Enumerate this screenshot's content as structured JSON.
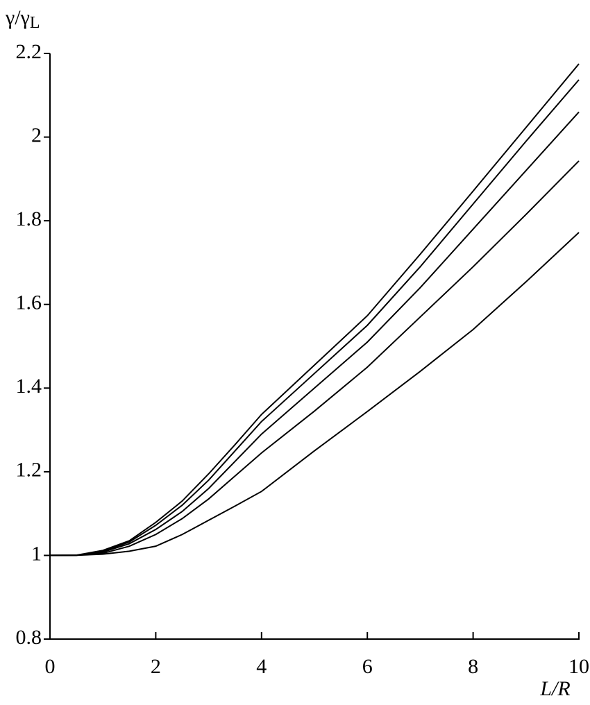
{
  "chart_data": {
    "type": "line",
    "ylabel": "γ/γ",
    "ylabel_sub": "L",
    "xlabel": "L/R",
    "x": [
      0,
      0.5,
      1,
      1.5,
      2,
      2.5,
      3,
      3.5,
      4,
      5,
      6,
      7,
      8,
      9,
      10
    ],
    "series": [
      {
        "color": "#000000",
        "values": [
          1,
          1.0005,
          1.012,
          1.035,
          1.079,
          1.13,
          1.195,
          1.265,
          1.337,
          1.455,
          1.573,
          1.72,
          1.871,
          2.023,
          2.175
        ]
      },
      {
        "color": "#000000",
        "values": [
          1,
          1.0005,
          1.01,
          1.032,
          1.072,
          1.12,
          1.18,
          1.25,
          1.32,
          1.435,
          1.55,
          1.69,
          1.84,
          1.99,
          2.137
        ]
      },
      {
        "color": "#000000",
        "values": [
          1,
          1.0004,
          1.008,
          1.028,
          1.062,
          1.105,
          1.16,
          1.225,
          1.29,
          1.4,
          1.51,
          1.64,
          1.78,
          1.92,
          2.06
        ]
      },
      {
        "color": "#000000",
        "values": [
          1,
          1.0003,
          1.005,
          1.022,
          1.05,
          1.088,
          1.135,
          1.19,
          1.245,
          1.345,
          1.45,
          1.57,
          1.69,
          1.815,
          1.943
        ]
      },
      {
        "color": "#000000",
        "values": [
          1,
          1.0002,
          1.003,
          1.01,
          1.022,
          1.05,
          1.084,
          1.118,
          1.153,
          1.25,
          1.344,
          1.44,
          1.54,
          1.654,
          1.772
        ]
      }
    ],
    "xlim": [
      0,
      10
    ],
    "xticks": [
      0,
      2,
      4,
      6,
      8,
      10
    ],
    "ylim": [
      0.8,
      2.2
    ],
    "yticks": [
      0.8,
      1,
      1.2,
      1.4,
      1.6,
      1.8,
      2,
      2.2
    ],
    "grid": false
  }
}
